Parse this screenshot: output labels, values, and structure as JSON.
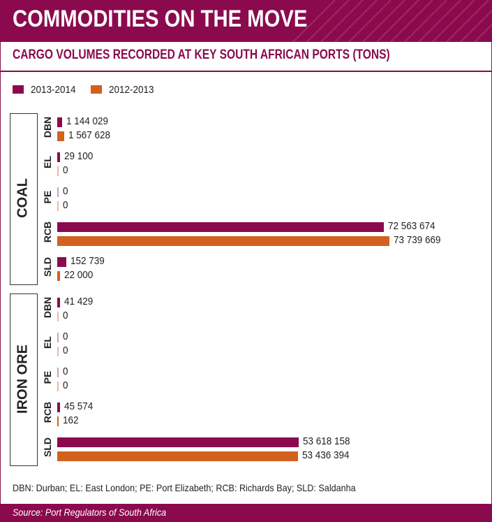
{
  "header": {
    "title": "COMMODITIES ON THE MOVE"
  },
  "subtitle": "CARGO VOLUMES RECORDED AT KEY SOUTH AFRICAN PORTS (TONS)",
  "footnote": "DBN: Durban; EL: East London; PE: Port Elizabeth; RCB: Richards Bay; SLD: Saldanha",
  "source": "Source: Port Regulators of South Africa",
  "colors": {
    "accent": "#8b0a4d",
    "series_2013_2014": "#8b0a4d",
    "series_2012_2013": "#d2601f"
  },
  "chart_data": {
    "type": "bar",
    "orientation": "horizontal",
    "title": "CARGO VOLUMES RECORDED AT KEY SOUTH AFRICAN PORTS (TONS)",
    "legend": {
      "placement": "top-left",
      "entries": [
        "2013-2014",
        "2012-2013"
      ]
    },
    "series": [
      {
        "name": "2013-2014",
        "color": "#8b0a4d"
      },
      {
        "name": "2012-2013",
        "color": "#d2601f"
      }
    ],
    "groups": [
      {
        "name": "COAL",
        "ports": [
          {
            "port": "DBN",
            "values": [
              1144029,
              1567628
            ],
            "labels": [
              "1 144 029",
              "1 567 628"
            ]
          },
          {
            "port": "EL",
            "values": [
              29100,
              0
            ],
            "labels": [
              "29 100",
              "0"
            ]
          },
          {
            "port": "PE",
            "values": [
              0,
              0
            ],
            "labels": [
              "0",
              "0"
            ]
          },
          {
            "port": "RCB",
            "values": [
              72563674,
              73739669
            ],
            "labels": [
              "72 563 674",
              "73 739 669"
            ]
          },
          {
            "port": "SLD",
            "values": [
              152739,
              22000
            ],
            "labels": [
              "152 739",
              "22 000"
            ]
          }
        ]
      },
      {
        "name": "IRON ORE",
        "ports": [
          {
            "port": "DBN",
            "values": [
              41429,
              0
            ],
            "labels": [
              "41 429",
              "0"
            ]
          },
          {
            "port": "EL",
            "values": [
              0,
              0
            ],
            "labels": [
              "0",
              "0"
            ]
          },
          {
            "port": "PE",
            "values": [
              0,
              0
            ],
            "labels": [
              "0",
              "0"
            ]
          },
          {
            "port": "RCB",
            "values": [
              45574,
              162
            ],
            "labels": [
              "45 574",
              "162"
            ]
          },
          {
            "port": "SLD",
            "values": [
              53618158,
              53436394
            ],
            "labels": [
              "53 618 158",
              "53 436 394"
            ]
          }
        ]
      }
    ],
    "scale_note": "bars are not to a single linear scale; small values drawn with a minimum visible length"
  }
}
